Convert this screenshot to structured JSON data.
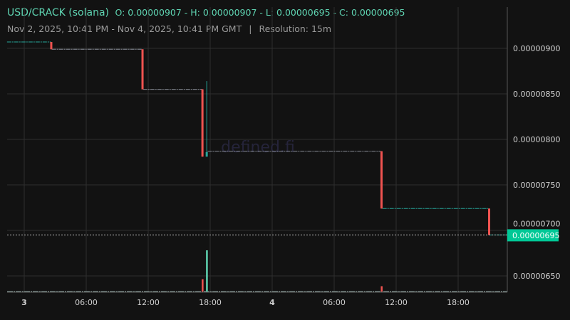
{
  "header": {
    "pair": "USD/CRACK (solana)",
    "ohlc": "O: 0.00000907 - H: 0.00000907 - L: 0.00000695 - C: 0.00000695",
    "range": "Nov 2, 2025, 10:41 PM - Nov 4, 2025, 10:41 PM GMT",
    "separator": "|",
    "resolution": "Resolution: 15m"
  },
  "watermark": "defined.fi",
  "colors": {
    "up": "#26a69a",
    "down": "#ef5350",
    "last_price_bg": "#00c896",
    "grid": "#2e2e2e",
    "text": "#d0d0d0"
  },
  "chart_data": {
    "type": "candlestick",
    "ylim": [
      6.3e-06,
      9.4e-06
    ],
    "xlim": [
      "2025-11-02T22:20",
      "2025-11-04T23:10"
    ],
    "grid": true,
    "y_ticks": [
      "0.00000650",
      "0.00000700",
      "0.00000750",
      "0.00000800",
      "0.00000850",
      "0.00000900"
    ],
    "x_ticks": [
      {
        "t": "2025-11-03T00:00",
        "label": "3",
        "bold": true
      },
      {
        "t": "2025-11-03T06:00",
        "label": "06:00"
      },
      {
        "t": "2025-11-03T12:00",
        "label": "12:00"
      },
      {
        "t": "2025-11-03T18:00",
        "label": "18:00"
      },
      {
        "t": "2025-11-04T00:00",
        "label": "4",
        "bold": true
      },
      {
        "t": "2025-11-04T06:00",
        "label": "06:00"
      },
      {
        "t": "2025-11-04T12:00",
        "label": "12:00"
      },
      {
        "t": "2025-11-04T18:00",
        "label": "18:00"
      }
    ],
    "flat_segments": [
      {
        "from": "2025-11-02T22:20",
        "to": "2025-11-03T02:35",
        "price": 9.07e-06,
        "dir": "up"
      },
      {
        "from": "2025-11-03T02:40",
        "to": "2025-11-03T11:25",
        "price": 8.99e-06,
        "dir": "neutral"
      },
      {
        "from": "2025-11-03T11:30",
        "to": "2025-11-03T17:15",
        "price": 8.55e-06,
        "dir": "neutral"
      },
      {
        "from": "2025-11-03T17:45",
        "to": "2025-11-04T10:30",
        "price": 7.87e-06,
        "dir": "neutral"
      },
      {
        "from": "2025-11-04T10:40",
        "to": "2025-11-04T20:55",
        "price": 7.24e-06,
        "dir": "up"
      },
      {
        "from": "2025-11-04T21:00",
        "to": "2025-11-04T23:10",
        "price": 6.95e-06,
        "dir": "up"
      }
    ],
    "candles": [
      {
        "t": "2025-11-03T02:37",
        "open": 9.07e-06,
        "high": 9.07e-06,
        "low": 8.99e-06,
        "close": 8.99e-06
      },
      {
        "t": "2025-11-03T11:27",
        "open": 8.99e-06,
        "high": 8.99e-06,
        "low": 8.55e-06,
        "close": 8.55e-06
      },
      {
        "t": "2025-11-03T17:15",
        "open": 8.55e-06,
        "high": 8.55e-06,
        "low": 7.81e-06,
        "close": 7.81e-06
      },
      {
        "t": "2025-11-03T17:40",
        "open": 7.81e-06,
        "high": 8.64e-06,
        "low": 7.81e-06,
        "close": 7.86e-06
      },
      {
        "t": "2025-11-04T10:35",
        "open": 7.87e-06,
        "high": 7.87e-06,
        "low": 7.24e-06,
        "close": 7.24e-06
      },
      {
        "t": "2025-11-04T21:00",
        "open": 7.24e-06,
        "high": 7.24e-06,
        "low": 6.95e-06,
        "close": 6.95e-06
      }
    ],
    "volume_relative": [
      {
        "t": "2025-11-03T17:15",
        "value": 0.3,
        "dir": "down"
      },
      {
        "t": "2025-11-03T17:40",
        "value": 1.0,
        "dir": "up"
      },
      {
        "t": "2025-11-04T10:35",
        "value": 0.13,
        "dir": "down"
      }
    ],
    "last_price": "0.00000695",
    "last_price_value": 6.95e-06
  }
}
